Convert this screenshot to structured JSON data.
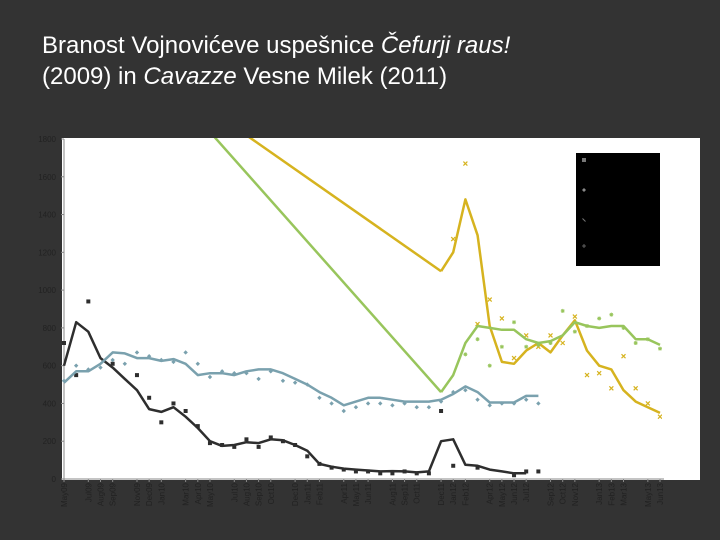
{
  "title": {
    "line1_a": "Branost Vojnovićeve uspešnice ",
    "line1_b": "Čefurji raus!",
    "line2_a": "(2009) in ",
    "line2_b": "Cavazze",
    "line2_c": " Vesne Milek (2011)"
  },
  "chart_data": {
    "type": "line",
    "title": "",
    "xlabel": "",
    "ylabel": "",
    "ylim": [
      0,
      1800
    ],
    "yticks": [
      0,
      200,
      400,
      600,
      800,
      1000,
      1200,
      1400,
      1600,
      1800
    ],
    "grid": false,
    "legend": "top-right",
    "categories": [
      "May09",
      "Jun09",
      "Jul09",
      "Aug09",
      "Sep09",
      "Oct09",
      "Nov09",
      "Dec09",
      "Jan10",
      "Feb10",
      "Mar10",
      "Apr10",
      "May10",
      "Jun10",
      "Jul10",
      "Aug10",
      "Sep10",
      "Oct10",
      "Nov10",
      "Dec10",
      "Jan11",
      "Feb11",
      "Mar11",
      "Apr11",
      "May11",
      "Jun11",
      "Jul11",
      "Aug11",
      "Sep11",
      "Oct11",
      "Nov11",
      "Dec11",
      "Jan12",
      "Feb12",
      "Mar12",
      "Apr12",
      "May12",
      "Jun12",
      "Jul12",
      "Aug12",
      "Sep12",
      "Oct12",
      "Nov12",
      "Dec12",
      "Jan13",
      "Feb13",
      "Mar13",
      "Apr13",
      "May13",
      "Jun13"
    ],
    "tick_labels": [
      "May09",
      "Jul09",
      "Aug09",
      "Sep09",
      "Nov09",
      "Dec09",
      "Jan10",
      "Mar10",
      "Apr10",
      "May10",
      "Jul10",
      "Aug10",
      "Sep10",
      "Oct10",
      "Dec10",
      "Jan11",
      "Feb11",
      "Apr11",
      "May11",
      "Jun11",
      "Aug11",
      "Sep11",
      "Oct11",
      "Dec11",
      "Jan12",
      "Feb12",
      "Apr12",
      "May12",
      "Jun12",
      "Jul12",
      "Sep12",
      "Oct12",
      "Nov12",
      "Jan13",
      "Feb13",
      "Mar13",
      "May13",
      "Jun13"
    ],
    "series": [
      {
        "color": "#2e2e2e",
        "marker": "square",
        "line": true,
        "values": [
          600,
          830,
          780,
          640,
          590,
          530,
          470,
          370,
          355,
          380,
          330,
          270,
          200,
          175,
          180,
          195,
          190,
          210,
          205,
          180,
          150,
          80,
          65,
          55,
          50,
          45,
          40,
          42,
          40,
          35,
          40,
          200,
          210,
          75,
          70,
          50,
          40,
          30,
          30,
          null,
          null,
          null,
          null,
          null,
          null,
          null,
          null,
          null,
          null,
          null
        ],
        "points": [
          720,
          550,
          940,
          null,
          610,
          null,
          550,
          430,
          300,
          400,
          360,
          280,
          190,
          180,
          170,
          210,
          170,
          220,
          200,
          180,
          120,
          80,
          60,
          50,
          40,
          40,
          30,
          30,
          40,
          30,
          30,
          360,
          70,
          null,
          60,
          null,
          null,
          20,
          40,
          40,
          null,
          null,
          null,
          null,
          null,
          null,
          null,
          null,
          null,
          null
        ]
      },
      {
        "color": "#7aa1ae",
        "marker": "diamond",
        "line": true,
        "values": [
          510,
          570,
          570,
          610,
          670,
          665,
          640,
          640,
          625,
          635,
          610,
          550,
          560,
          560,
          550,
          570,
          580,
          580,
          560,
          530,
          500,
          460,
          430,
          390,
          410,
          430,
          430,
          420,
          410,
          410,
          410,
          420,
          450,
          490,
          460,
          405,
          405,
          405,
          440,
          440,
          null,
          null,
          null,
          null,
          null,
          null,
          null,
          null,
          null,
          null
        ],
        "points": [
          520,
          600,
          580,
          590,
          630,
          610,
          670,
          650,
          630,
          620,
          670,
          610,
          540,
          570,
          560,
          560,
          530,
          570,
          520,
          510,
          500,
          430,
          400,
          360,
          380,
          400,
          400,
          390,
          400,
          380,
          380,
          410,
          460,
          470,
          420,
          390,
          400,
          400,
          420,
          400,
          null,
          null,
          null,
          null,
          null,
          null,
          null,
          null,
          null,
          null
        ]
      },
      {
        "color": "#d6b31f",
        "marker": "x",
        "line": true,
        "values": [
          null,
          null,
          null,
          null,
          null,
          null,
          null,
          null,
          null,
          null,
          null,
          null,
          null,
          null,
          null,
          null,
          null,
          null,
          null,
          null,
          null,
          null,
          null,
          null,
          null,
          null,
          null,
          null,
          null,
          null,
          null,
          1100,
          1200,
          1480,
          1290,
          810,
          620,
          610,
          680,
          720,
          670,
          760,
          840,
          680,
          600,
          580,
          470,
          410,
          380,
          350
        ],
        "points": [
          null,
          null,
          null,
          null,
          null,
          null,
          null,
          null,
          null,
          null,
          null,
          null,
          null,
          null,
          null,
          null,
          null,
          null,
          null,
          null,
          null,
          null,
          null,
          null,
          null,
          null,
          null,
          null,
          null,
          null,
          null,
          null,
          1270,
          1670,
          820,
          950,
          850,
          640,
          760,
          700,
          760,
          720,
          860,
          550,
          560,
          480,
          650,
          480,
          400,
          330
        ]
      },
      {
        "color": "#98c55c",
        "marker": "star",
        "line": true,
        "values": [
          null,
          null,
          null,
          null,
          null,
          null,
          null,
          null,
          null,
          null,
          null,
          null,
          null,
          null,
          null,
          null,
          null,
          null,
          null,
          null,
          null,
          null,
          null,
          null,
          null,
          null,
          null,
          null,
          null,
          null,
          null,
          460,
          550,
          720,
          810,
          800,
          790,
          790,
          740,
          720,
          730,
          760,
          830,
          810,
          800,
          810,
          810,
          740,
          740,
          710
        ],
        "points": [
          null,
          null,
          null,
          null,
          null,
          null,
          null,
          null,
          null,
          null,
          null,
          null,
          null,
          null,
          null,
          null,
          null,
          null,
          null,
          null,
          null,
          null,
          null,
          null,
          null,
          null,
          null,
          null,
          null,
          null,
          null,
          null,
          null,
          660,
          740,
          600,
          700,
          830,
          700,
          710,
          720,
          890,
          780,
          810,
          850,
          870,
          800,
          720,
          740,
          690
        ]
      }
    ],
    "trend_lines": [
      {
        "color": "#98c55c",
        "from": {
          "x": 7,
          "y": 2200
        },
        "to": {
          "x": 31,
          "y": 460
        }
      },
      {
        "color": "#d6b31f",
        "from": {
          "x": 11,
          "y": 2000
        },
        "to": {
          "x": 31,
          "y": 1100
        }
      }
    ],
    "legend_box": {
      "background": "#000000",
      "entries": [
        "",
        "",
        "",
        ""
      ]
    }
  }
}
